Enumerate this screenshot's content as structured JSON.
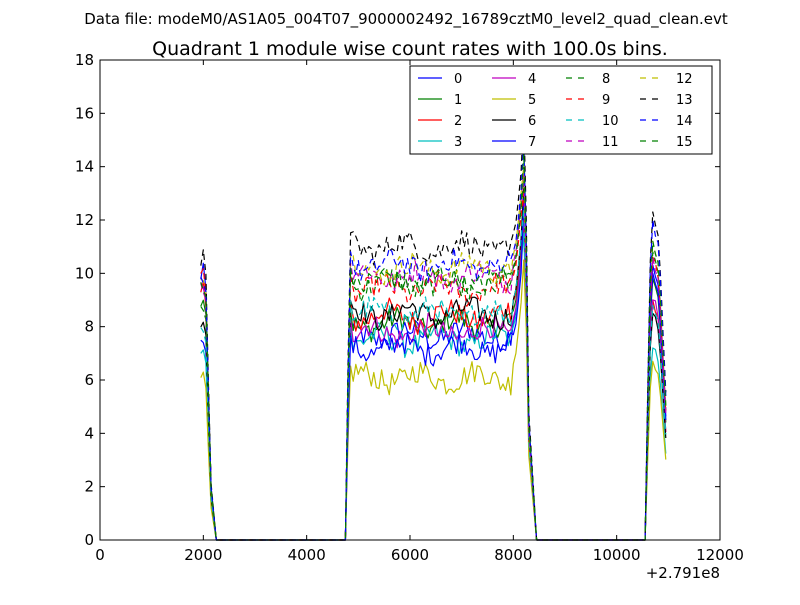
{
  "chart_data": {
    "type": "line",
    "suptitle": "Data file: modeM0/AS1A05_004T07_9000002492_16789cztM0_level2_quad_clean.evt",
    "title": "Quadrant 1 module wise count rates with 100.0s bins.",
    "xlabel": "",
    "ylabel": "",
    "x_offset_label": "+2.791e8",
    "xlim": [
      0,
      12000
    ],
    "ylim": [
      0,
      18
    ],
    "x_ticks": [
      0,
      2000,
      4000,
      6000,
      8000,
      10000,
      12000
    ],
    "y_ticks": [
      0,
      2,
      4,
      6,
      8,
      10,
      12,
      14,
      16,
      18
    ],
    "x_tick_labels": [
      "0",
      "2000",
      "4000",
      "6000",
      "8000",
      "10000",
      "12000"
    ],
    "y_tick_labels": [
      "0",
      "2",
      "4",
      "6",
      "8",
      "10",
      "12",
      "14",
      "16",
      "18"
    ],
    "legend_position": "top-right",
    "legend_columns": 4,
    "segments": [
      {
        "x_start": 1950,
        "x_end": 2250,
        "edge_left": 2150,
        "edge_right": 2250
      },
      {
        "x_start": 4750,
        "x_end": 8450,
        "edge_left": 4750,
        "edge_right": 8450
      },
      {
        "x_start": 10550,
        "x_end": 10950,
        "edge_left": 10550,
        "edge_right": 10950
      }
    ],
    "zero_ranges": [
      [
        2250,
        4750
      ],
      [
        8450,
        10550
      ]
    ],
    "series": [
      {
        "name": "0",
        "color": "#0000ff",
        "dash": "solid",
        "level_first": 7.4,
        "level_main": 7.7,
        "peak": 12.5,
        "level_last": 10.3
      },
      {
        "name": "1",
        "color": "#008000",
        "dash": "solid",
        "level_first": 8.9,
        "level_main": 8.1,
        "peak": 11.8,
        "level_last": 9.8
      },
      {
        "name": "2",
        "color": "#ff0000",
        "dash": "solid",
        "level_first": 9.2,
        "level_main": 8.4,
        "peak": 12.0,
        "level_last": 9.0
      },
      {
        "name": "3",
        "color": "#00bfbf",
        "dash": "solid",
        "level_first": 7.0,
        "level_main": 7.5,
        "peak": 11.5,
        "level_last": 7.2
      },
      {
        "name": "4",
        "color": "#bf00bf",
        "dash": "solid",
        "level_first": 9.5,
        "level_main": 7.8,
        "peak": 12.2,
        "level_last": 9.0
      },
      {
        "name": "5",
        "color": "#bfbf00",
        "dash": "solid",
        "level_first": 6.0,
        "level_main": 6.1,
        "peak": 10.5,
        "level_last": 6.7
      },
      {
        "name": "6",
        "color": "#000000",
        "dash": "solid",
        "level_first": 8.1,
        "level_main": 8.5,
        "peak": 13.2,
        "level_last": 8.5
      },
      {
        "name": "7",
        "color": "#0000ff",
        "dash": "solid",
        "level_first": 9.9,
        "level_main": 7.2,
        "peak": 12.8,
        "level_last": 10.0
      },
      {
        "name": "8",
        "color": "#008000",
        "dash": "dashed",
        "level_first": 8.7,
        "level_main": 9.6,
        "peak": 13.5,
        "level_last": 10.8
      },
      {
        "name": "9",
        "color": "#ff0000",
        "dash": "dashed",
        "level_first": 9.7,
        "level_main": 9.4,
        "peak": 13.0,
        "level_last": 10.6
      },
      {
        "name": "10",
        "color": "#00bfbf",
        "dash": "dashed",
        "level_first": 7.8,
        "level_main": 8.5,
        "peak": 12.4,
        "level_last": 8.8
      },
      {
        "name": "11",
        "color": "#bf00bf",
        "dash": "dashed",
        "level_first": 9.5,
        "level_main": 9.9,
        "peak": 13.8,
        "level_last": 10.6
      },
      {
        "name": "12",
        "color": "#bfbf00",
        "dash": "dashed",
        "level_first": 9.8,
        "level_main": 10.2,
        "peak": 14.0,
        "level_last": 11.2
      },
      {
        "name": "13",
        "color": "#000000",
        "dash": "dashed",
        "level_first": 10.5,
        "level_main": 11.0,
        "peak": 16.0,
        "level_last": 12.3
      },
      {
        "name": "14",
        "color": "#0000ff",
        "dash": "dashed",
        "level_first": 9.8,
        "level_main": 10.3,
        "peak": 15.0,
        "level_last": 12.0
      },
      {
        "name": "15",
        "color": "#008000",
        "dash": "dashed",
        "level_first": 9.6,
        "level_main": 9.7,
        "peak": 14.5,
        "level_last": 11.2
      }
    ]
  }
}
